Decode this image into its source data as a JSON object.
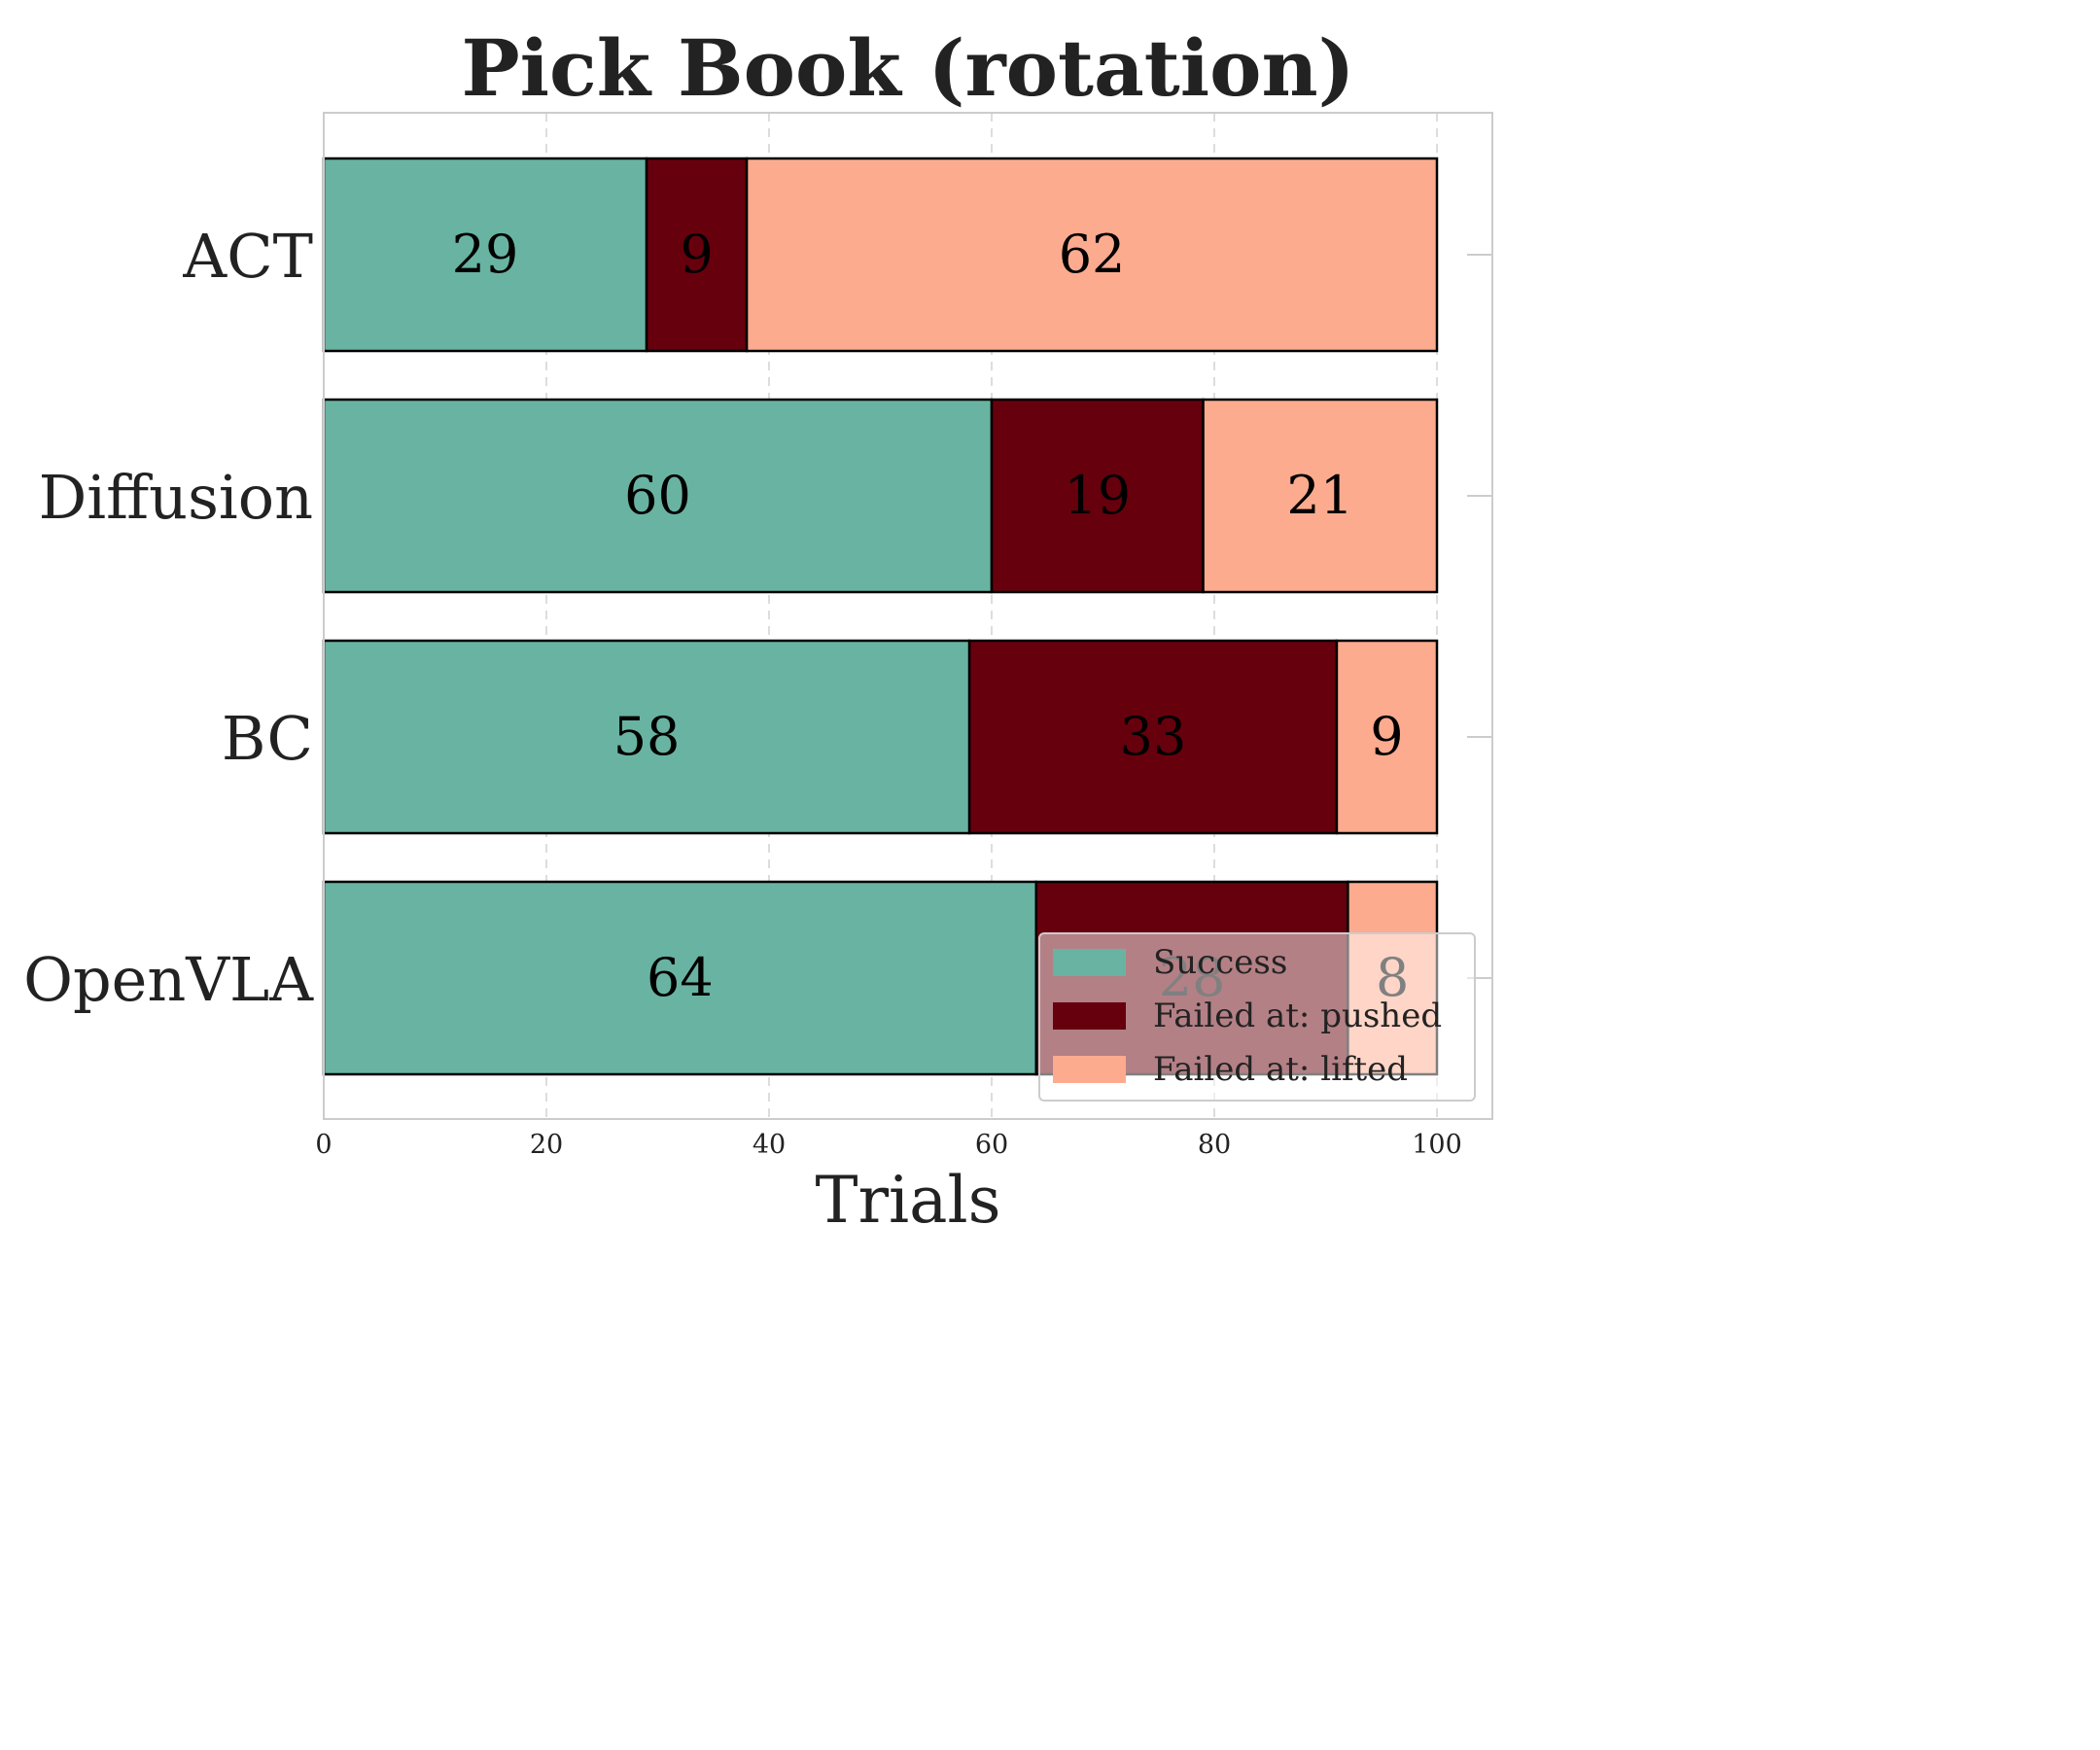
{
  "chart_data": {
    "type": "bar",
    "orientation": "horizontal",
    "stacked": true,
    "title": "Pick Book (rotation)",
    "xlabel": "Trials",
    "ylabel": "",
    "xlim": [
      0,
      105
    ],
    "xticks": [
      0,
      20,
      40,
      60,
      80,
      100
    ],
    "grid": "x-dashed",
    "legend_position": "lower-right",
    "categories": [
      "ACT",
      "Diffusion",
      "BC",
      "OpenVLA"
    ],
    "series": [
      {
        "name": "Success",
        "color": "#69b3a2",
        "label_color": "#000000",
        "values": [
          29,
          60,
          58,
          64
        ]
      },
      {
        "name": "Failed at: pushed",
        "color": "#67000d",
        "label_color": "#000000",
        "values": [
          9,
          19,
          33,
          28
        ]
      },
      {
        "name": "Failed at: lifted",
        "color": "#fcab8f",
        "label_color": "#000000",
        "values": [
          62,
          21,
          9,
          8
        ]
      }
    ]
  }
}
